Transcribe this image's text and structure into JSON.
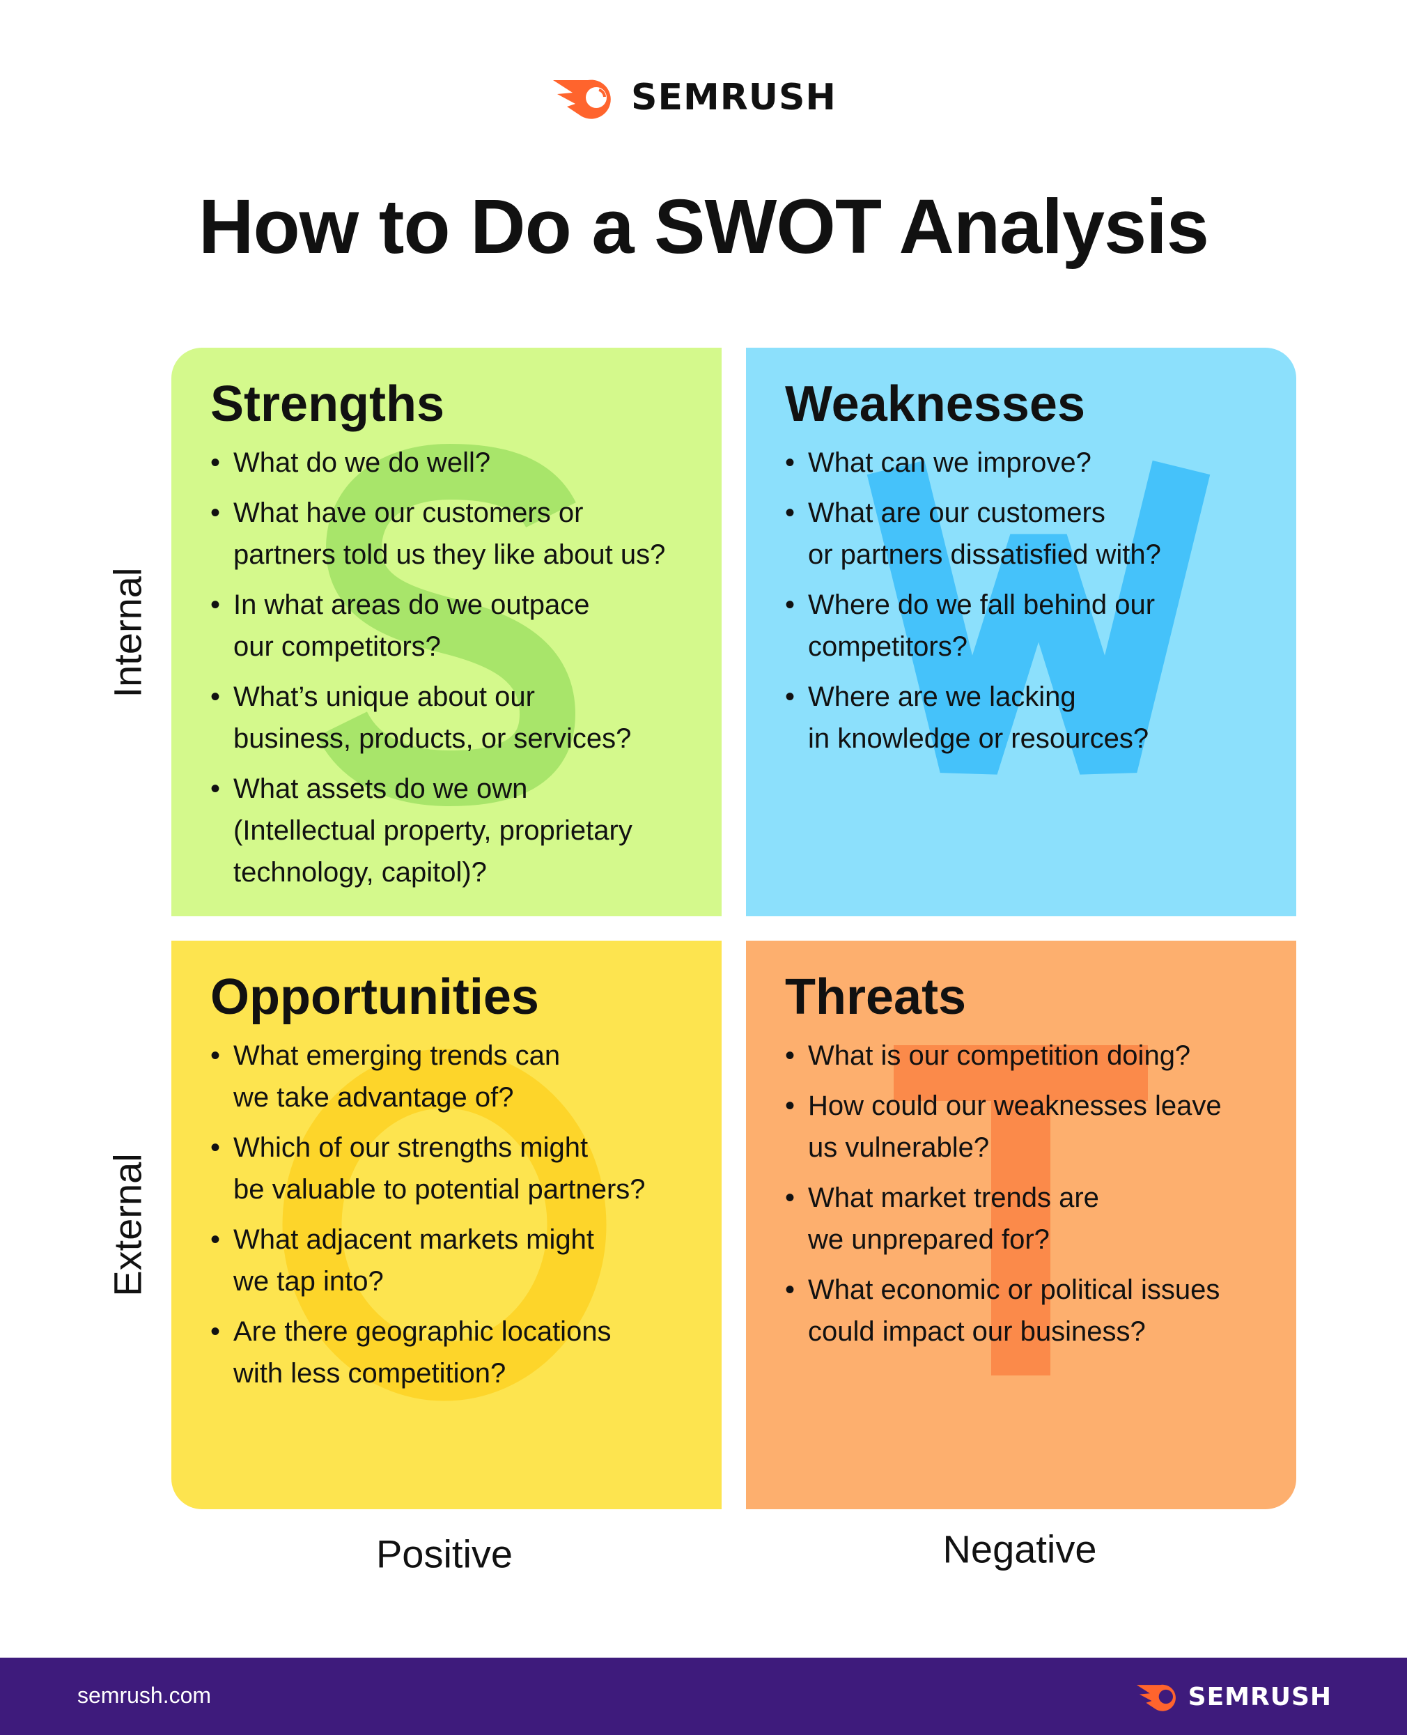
{
  "brand": {
    "name": "SEMRUSH",
    "accent": "#ff642d",
    "footer_color": "#3e1b7c"
  },
  "title": "How to Do a SWOT Analysis",
  "axes": {
    "internal": "Internal",
    "external": "External",
    "positive": "Positive",
    "negative": "Negative"
  },
  "quadrants": {
    "strengths": {
      "heading": "Strengths",
      "letter": "S",
      "color": "#d4f98c",
      "items": [
        "What do we do well?",
        "What have our customers or\npartners told us they like about us?",
        "In what areas do we outpace\nour competitors?",
        "What’s unique about our\nbusiness, products, or services?",
        "What assets do we own\n(Intellectual property, proprietary\ntechnology, capitol)?"
      ]
    },
    "weaknesses": {
      "heading": "Weaknesses",
      "letter": "W",
      "color": "#8ce0fc",
      "items": [
        "What can we improve?",
        "What are our customers\nor partners dissatisfied with?",
        "Where do we fall behind our\ncompetitors?",
        "Where are we lacking\nin knowledge or resources?"
      ]
    },
    "opportunities": {
      "heading": "Opportunities",
      "letter": "O",
      "color": "#fde44f",
      "items": [
        "What emerging trends can\nwe take advantage of?",
        "Which of our strengths might\nbe valuable to potential partners?",
        "What adjacent markets might\nwe tap into?",
        "Are there geographic locations\nwith less competition?"
      ]
    },
    "threats": {
      "heading": "Threats",
      "letter": "T",
      "color": "#fdaf6e",
      "items": [
        "What is our competition doing?",
        "How could our weaknesses leave\nus vulnerable?",
        "What market trends are\nwe unprepared for?",
        "What economic or political issues\ncould impact our business?"
      ]
    }
  },
  "footer": {
    "url": "semrush.com",
    "brand": "SEMRUSH"
  }
}
